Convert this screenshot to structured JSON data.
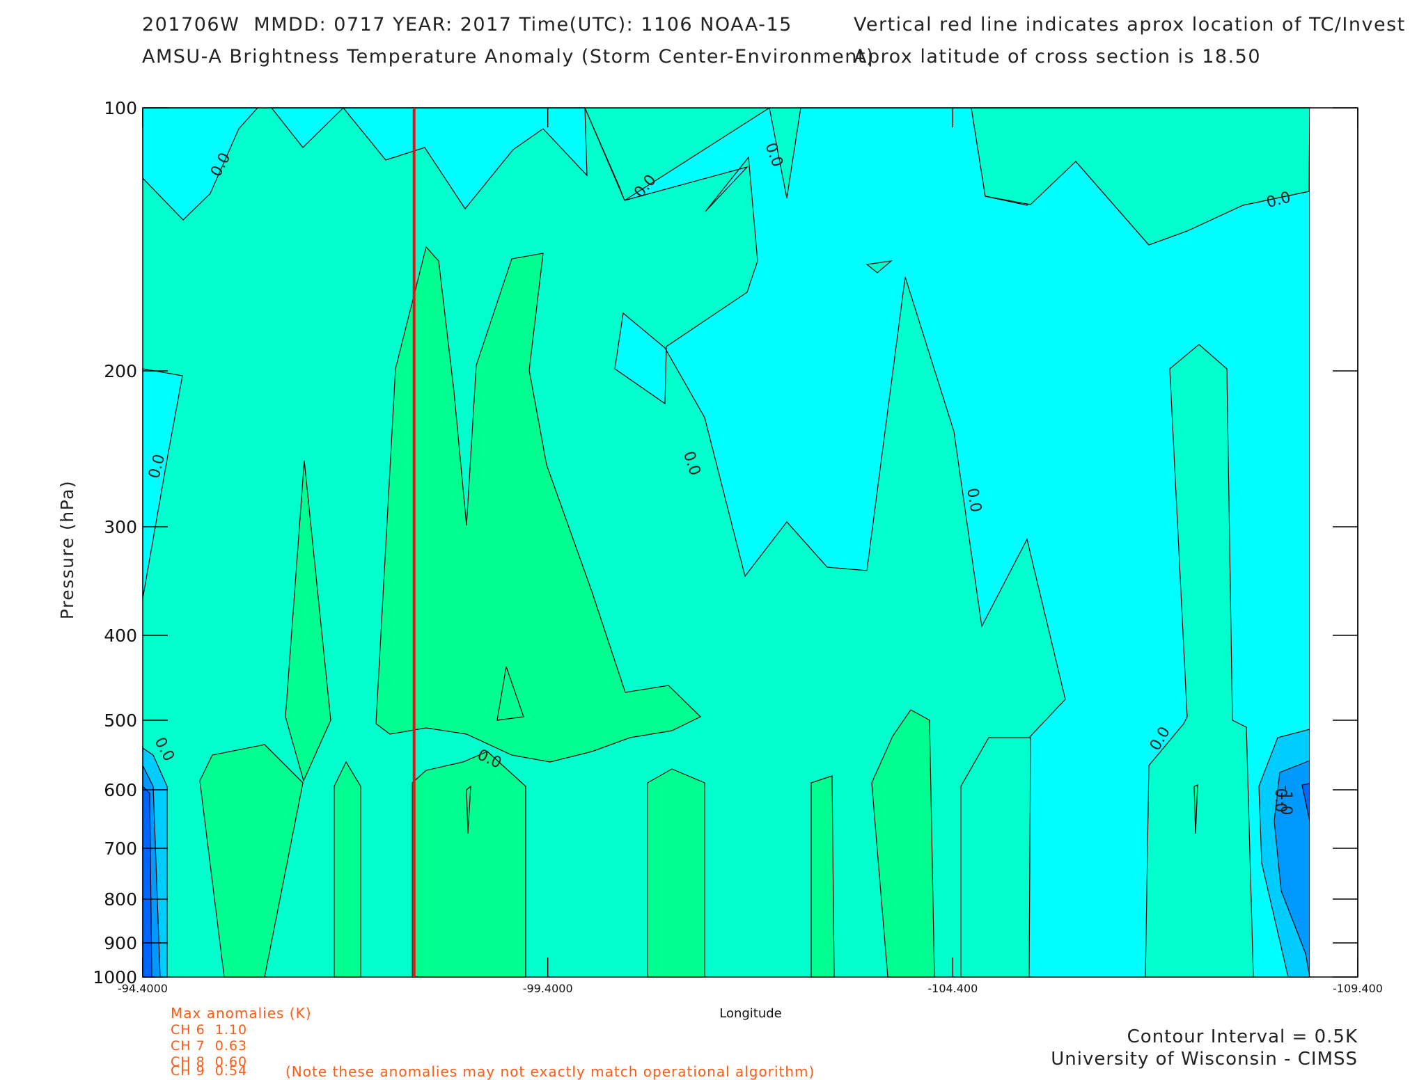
{
  "header": {
    "line1_left": "201706W  MMDD: 0717 YEAR: 2017 Time(UTC): 1106 NOAA-15",
    "line2_left": "AMSU-A Brightness Temperature Anomaly (Storm Center-Environment)",
    "line1_right": "Vertical red line indicates aprox location of TC/Invest",
    "line2_right": "Aprox latitude of cross section is 18.50"
  },
  "chart_data": {
    "type": "contour",
    "xlabel": "Longitude",
    "ylabel": "Pressure (hPa)",
    "x_ticks": [
      "-94.4000",
      "-99.4000",
      "-104.400",
      "-109.400"
    ],
    "x_tick_values": [
      -94.4,
      -99.4,
      -104.4,
      -109.4
    ],
    "y_ticks": [
      "100",
      "200",
      "300",
      "400",
      "500",
      "600",
      "700",
      "800",
      "900",
      "1000"
    ],
    "y_tick_values": [
      100,
      200,
      300,
      400,
      500,
      600,
      700,
      800,
      900,
      1000
    ],
    "y_scale": "log",
    "contour_interval_k": 0.5,
    "contour_labels": [
      "0.0",
      "0.0",
      "0.0",
      "0.0",
      "0.0",
      "0.0",
      "0.0",
      "0.0",
      "0.0",
      "0.0",
      "0.0",
      "-1.0"
    ],
    "storm_center_longitude": -97.75,
    "colors": {
      "above_0.5": "#00ff90",
      "0_to_0.5": "#00ffcc",
      "minus0.5_to_0": "#00ffff",
      "minus1_to_minus0.5": "#00ccff",
      "below_minus1": "#0099ff",
      "below_minus1.5": "#0066ff",
      "storm_line": "#ee1111"
    }
  },
  "max_anomalies": {
    "title": "Max anomalies (K)",
    "rows": [
      {
        "channel": "CH 6",
        "value": "1.10"
      },
      {
        "channel": "CH 7",
        "value": "0.63"
      },
      {
        "channel": "CH 8",
        "value": "0.60"
      },
      {
        "channel": "CH 9",
        "value": "0.54"
      }
    ],
    "note": "(Note these anomalies may not exactly match operational algorithm)"
  },
  "footer": {
    "contour_interval": "Contour Interval = 0.5K",
    "credit": "University of Wisconsin - CIMSS"
  }
}
